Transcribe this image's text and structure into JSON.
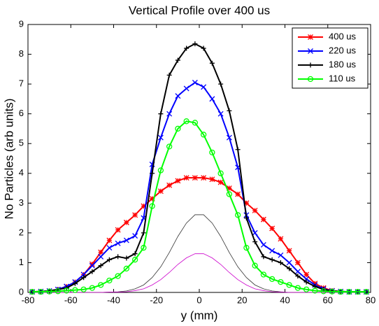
{
  "chart_data": {
    "type": "line",
    "title": "Vertical Profile over 400 us",
    "xlabel": "y (mm)",
    "ylabel": "No Particles (arb units)",
    "xlim": [
      -80,
      80
    ],
    "xticks": [
      -80,
      -60,
      -40,
      -20,
      0,
      20,
      40,
      60,
      80
    ],
    "ylim": [
      0,
      9
    ],
    "yticks": [
      0,
      1,
      2,
      3,
      4,
      5,
      6,
      7,
      8,
      9
    ],
    "legend": "upper right",
    "x": [
      -78,
      -74,
      -70,
      -66,
      -62,
      -58,
      -54,
      -50,
      -46,
      -42,
      -38,
      -34,
      -30,
      -26,
      -22,
      -18,
      -14,
      -10,
      -6,
      -2,
      2,
      6,
      10,
      14,
      18,
      22,
      26,
      30,
      34,
      38,
      42,
      46,
      50,
      54,
      58,
      62,
      66,
      70,
      74,
      78
    ],
    "series": [
      {
        "color": "#333333",
        "values": [
          0,
          0,
          0,
          0,
          0,
          0,
          0,
          0,
          0,
          0.01,
          0.02,
          0.05,
          0.12,
          0.25,
          0.5,
          0.86,
          1.34,
          1.88,
          2.33,
          2.61,
          2.61,
          2.33,
          1.88,
          1.34,
          0.86,
          0.5,
          0.25,
          0.12,
          0.05,
          0.02,
          0,
          0,
          0,
          0,
          0,
          0,
          0,
          0,
          0,
          0
        ]
      },
      {
        "color": "#cc00cc",
        "values": [
          0,
          0,
          0,
          0,
          0,
          0,
          0,
          0,
          0,
          0.01,
          0.01,
          0.02,
          0.06,
          0.12,
          0.25,
          0.43,
          0.67,
          0.94,
          1.16,
          1.3,
          1.3,
          1.16,
          0.94,
          0.67,
          0.43,
          0.25,
          0.12,
          0.06,
          0.02,
          0.01,
          0,
          0,
          0,
          0,
          0,
          0,
          0,
          0,
          0,
          0
        ]
      },
      {
        "name": "400 us",
        "color": "#ff0000",
        "marker": "star",
        "values": [
          0.02,
          0.03,
          0.05,
          0.1,
          0.2,
          0.35,
          0.6,
          0.95,
          1.35,
          1.75,
          2.1,
          2.35,
          2.6,
          2.9,
          3.15,
          3.4,
          3.6,
          3.75,
          3.85,
          3.85,
          3.85,
          3.8,
          3.7,
          3.5,
          3.3,
          3.0,
          2.75,
          2.45,
          2.15,
          1.8,
          1.4,
          1.0,
          0.6,
          0.3,
          0.15,
          0.06,
          0.03,
          0.02,
          0.02,
          0.02
        ]
      },
      {
        "name": "220 us",
        "color": "#0000ff",
        "marker": "x",
        "values": [
          0.02,
          0.03,
          0.05,
          0.1,
          0.2,
          0.35,
          0.6,
          0.9,
          1.2,
          1.5,
          1.65,
          1.75,
          1.9,
          2.5,
          4.3,
          5.2,
          6.0,
          6.6,
          6.85,
          7.05,
          6.9,
          6.5,
          6.0,
          5.2,
          4.2,
          2.6,
          2.0,
          1.6,
          1.4,
          1.25,
          1.0,
          0.7,
          0.45,
          0.25,
          0.12,
          0.05,
          0.03,
          0.02,
          0.02,
          0.02
        ]
      },
      {
        "name": "180 us",
        "color": "#000000",
        "marker": "plus",
        "values": [
          0.02,
          0.03,
          0.05,
          0.1,
          0.15,
          0.3,
          0.5,
          0.7,
          0.9,
          1.1,
          1.2,
          1.15,
          1.3,
          2.0,
          4.0,
          6.0,
          7.3,
          7.8,
          8.2,
          8.35,
          8.2,
          7.7,
          7.0,
          6.1,
          4.8,
          2.5,
          1.7,
          1.2,
          1.1,
          1.0,
          0.8,
          0.55,
          0.35,
          0.2,
          0.1,
          0.05,
          0.03,
          0.02,
          0.02,
          0.02
        ]
      },
      {
        "name": "110 us",
        "color": "#00ff00",
        "marker": "circle",
        "values": [
          0.02,
          0.02,
          0.03,
          0.04,
          0.06,
          0.08,
          0.1,
          0.15,
          0.25,
          0.4,
          0.55,
          0.8,
          1.1,
          1.5,
          2.9,
          4.1,
          4.9,
          5.5,
          5.75,
          5.7,
          5.3,
          4.7,
          4.0,
          3.3,
          2.6,
          1.5,
          0.9,
          0.6,
          0.45,
          0.35,
          0.25,
          0.15,
          0.1,
          0.06,
          0.04,
          0.03,
          0.02,
          0.02,
          0.02,
          0.02
        ]
      }
    ]
  }
}
